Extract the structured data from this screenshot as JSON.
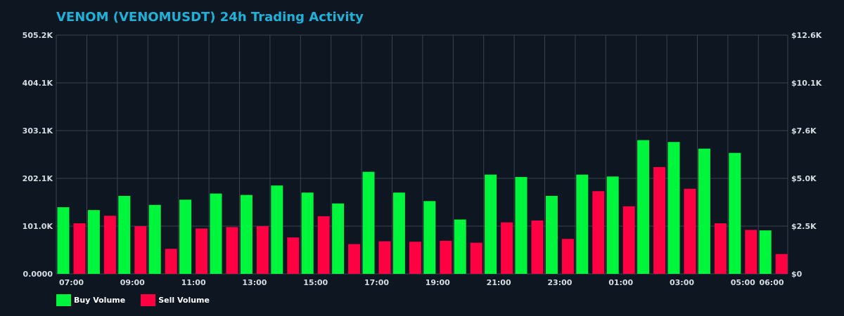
{
  "chart_data": {
    "type": "bar",
    "title": "VENOM (VENOMUSDT) 24h Trading Activity",
    "xlabel": "",
    "ylabel": "",
    "x_tick_labels": [
      "07:00",
      "09:00",
      "11:00",
      "13:00",
      "15:00",
      "17:00",
      "19:00",
      "21:00",
      "23:00",
      "01:00",
      "03:00",
      "05:00",
      "06:00"
    ],
    "y_left_ticks": [
      "0.0000",
      "101.0K",
      "202.1K",
      "303.1K",
      "404.1K",
      "505.2K"
    ],
    "y_right_ticks": [
      "$0",
      "$2.5K",
      "$5.0K",
      "$7.6K",
      "$10.1K",
      "$12.6K"
    ],
    "ylim": [
      0,
      505200
    ],
    "grid": true,
    "legend_position": "bottom-left",
    "series": [
      {
        "name": "Buy Volume",
        "color": "#00f53d",
        "values": [
          141000,
          135000,
          165000,
          146000,
          157000,
          170000,
          167000,
          187000,
          172000,
          149000,
          216000,
          172000,
          154000,
          115000,
          210000,
          205000,
          165000,
          210000,
          206000,
          283000,
          279000,
          265000,
          256000,
          92000
        ]
      },
      {
        "name": "Sell Volume",
        "color": "#ff0042",
        "values": [
          107000,
          123000,
          101000,
          53000,
          96000,
          99000,
          101000,
          77000,
          122000,
          63000,
          69000,
          68000,
          70000,
          66000,
          109000,
          113000,
          74000,
          175000,
          143000,
          226000,
          180000,
          107000,
          93000,
          42000
        ]
      }
    ]
  },
  "legend": {
    "buy_label": "Buy Volume",
    "sell_label": "Sell Volume",
    "buy_color": "#00f53d",
    "sell_color": "#ff0042"
  }
}
